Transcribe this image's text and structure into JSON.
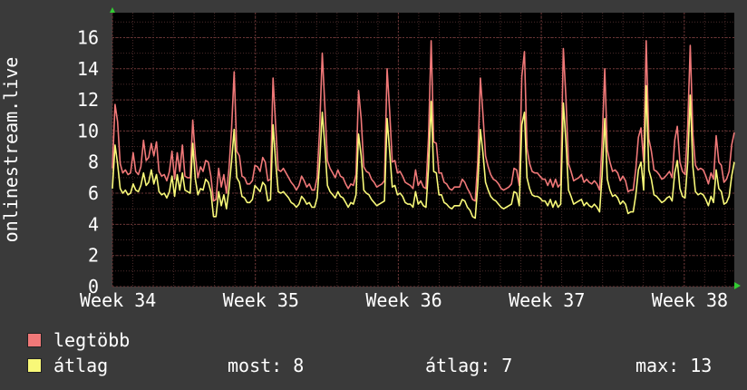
{
  "chart_data": {
    "type": "line",
    "ylabel": "onlinestream.live",
    "xlabel": "",
    "ylim": [
      0,
      17.6
    ],
    "yticks": [
      0,
      2,
      4,
      6,
      8,
      10,
      12,
      14,
      16
    ],
    "xticks": [
      "Week 34",
      "Week 35",
      "Week 36",
      "Week 37",
      "Week 38"
    ],
    "grid": true,
    "series": [
      {
        "name": "legtöbb",
        "color": "#f07878",
        "values": [
          7.6,
          11.7,
          10.6,
          7.9,
          7.3,
          7.5,
          7.2,
          7.3,
          8.6,
          7.4,
          7.2,
          7.7,
          9.4,
          8.1,
          8.3,
          9.2,
          8.4,
          9.3,
          7.4,
          7.1,
          7.2,
          6.8,
          7.4,
          8.7,
          6.9,
          8.6,
          7.4,
          9.1,
          7.1,
          7.0,
          7.0,
          10.7,
          8.4,
          7.0,
          7.7,
          7.4,
          8.1,
          8.0,
          7.1,
          5.5,
          5.6,
          7.6,
          6.4,
          7.2,
          6.0,
          7.6,
          10.2,
          13.8,
          8.7,
          8.4,
          7.1,
          7.0,
          6.6,
          6.6,
          6.8,
          7.8,
          7.7,
          7.4,
          8.3,
          8.0,
          6.8,
          6.9,
          13.4,
          10.3,
          7.5,
          7.4,
          7.6,
          7.3,
          7.0,
          6.7,
          6.5,
          6.2,
          6.5,
          7.1,
          6.8,
          6.4,
          6.6,
          6.2,
          6.2,
          7.0,
          10.3,
          15.0,
          11.5,
          8.1,
          7.6,
          7.3,
          7.0,
          7.5,
          7.1,
          7.0,
          6.6,
          6.3,
          6.6,
          6.5,
          7.2,
          12.6,
          10.8,
          7.7,
          7.4,
          7.3,
          6.9,
          6.7,
          6.4,
          6.5,
          6.6,
          6.8,
          14.0,
          11.3,
          8.0,
          8.1,
          7.3,
          7.4,
          7.1,
          6.7,
          6.6,
          6.5,
          6.3,
          7.5,
          6.5,
          6.8,
          6.4,
          6.3,
          9.6,
          15.8,
          9.3,
          9.2,
          7.3,
          7.3,
          6.7,
          6.6,
          6.3,
          6.2,
          6.4,
          6.4,
          6.4,
          6.9,
          6.7,
          6.3,
          6.0,
          5.6,
          5.5,
          8.0,
          13.4,
          11.1,
          8.4,
          7.7,
          7.2,
          6.9,
          6.8,
          6.6,
          6.3,
          6.2,
          6.3,
          6.4,
          6.6,
          7.6,
          7.5,
          6.5,
          13.5,
          15.1,
          8.9,
          7.9,
          7.4,
          7.3,
          7.3,
          7.1,
          6.9,
          6.9,
          6.5,
          6.9,
          6.4,
          6.9,
          6.4,
          6.6,
          15.3,
          12.2,
          7.9,
          7.4,
          6.8,
          6.9,
          7.0,
          7.2,
          6.7,
          6.9,
          6.7,
          6.6,
          6.8,
          6.6,
          6.2,
          9.3,
          14.0,
          8.8,
          8.0,
          7.4,
          7.5,
          7.3,
          6.8,
          7.1,
          6.8,
          6.1,
          6.2,
          6.2,
          7.6,
          9.6,
          10.2,
          8.0,
          15.8,
          9.5,
          8.7,
          7.5,
          7.4,
          7.2,
          6.9,
          7.0,
          7.2,
          7.4,
          7.0,
          9.4,
          10.3,
          8.0,
          7.4,
          7.2,
          10.3,
          15.5,
          9.8,
          7.8,
          7.5,
          7.6,
          7.5,
          7.1,
          6.6,
          7.3,
          6.9,
          9.7,
          8.0,
          7.8,
          6.7,
          6.9,
          7.4,
          9.1,
          9.9
        ]
      },
      {
        "name": "átlag",
        "color": "#f8f878",
        "values": [
          6.3,
          9.1,
          7.9,
          6.3,
          6.0,
          6.2,
          5.9,
          6.0,
          6.6,
          6.2,
          6.1,
          6.5,
          7.3,
          6.5,
          6.7,
          7.5,
          6.6,
          7.2,
          6.1,
          5.9,
          6.0,
          5.7,
          6.1,
          7.1,
          5.8,
          7.2,
          6.2,
          7.3,
          6.2,
          6.1,
          6.0,
          9.2,
          6.9,
          5.9,
          6.3,
          6.2,
          6.9,
          6.7,
          6.1,
          4.5,
          4.5,
          6.1,
          5.2,
          5.9,
          5.0,
          6.3,
          8.1,
          10.1,
          7.0,
          6.7,
          5.8,
          5.7,
          5.4,
          5.4,
          5.6,
          6.5,
          6.3,
          6.1,
          6.7,
          6.5,
          5.5,
          5.6,
          10.4,
          8.0,
          6.1,
          6.0,
          6.1,
          5.9,
          5.7,
          5.4,
          5.3,
          5.1,
          5.3,
          5.8,
          5.6,
          5.3,
          5.4,
          5.1,
          5.1,
          5.7,
          8.1,
          11.2,
          9.0,
          6.5,
          6.1,
          5.9,
          5.7,
          6.1,
          5.8,
          5.7,
          5.4,
          5.1,
          5.4,
          5.3,
          5.9,
          9.8,
          8.4,
          6.2,
          6.0,
          5.9,
          5.6,
          5.4,
          5.2,
          5.3,
          5.4,
          5.5,
          10.8,
          8.7,
          6.4,
          6.5,
          5.9,
          6.0,
          5.8,
          5.4,
          5.3,
          5.3,
          5.1,
          6.1,
          5.3,
          5.5,
          5.2,
          5.1,
          7.6,
          11.9,
          7.4,
          7.3,
          5.9,
          5.9,
          5.4,
          5.3,
          5.1,
          5.0,
          5.2,
          5.2,
          5.2,
          5.6,
          5.5,
          5.1,
          4.9,
          4.5,
          4.4,
          6.5,
          10.1,
          8.6,
          6.7,
          6.2,
          5.8,
          5.6,
          5.5,
          5.3,
          5.1,
          5.0,
          5.1,
          5.2,
          5.3,
          6.1,
          6.0,
          5.2,
          10.4,
          11.2,
          7.0,
          6.3,
          5.9,
          5.8,
          5.8,
          5.7,
          5.5,
          5.5,
          5.2,
          5.6,
          5.1,
          5.5,
          5.1,
          5.3,
          11.8,
          9.4,
          6.2,
          5.8,
          5.3,
          5.4,
          5.5,
          5.6,
          5.2,
          5.4,
          5.2,
          5.1,
          5.3,
          5.1,
          4.8,
          7.2,
          10.8,
          6.9,
          6.2,
          5.8,
          5.9,
          5.7,
          5.3,
          5.5,
          5.3,
          4.7,
          4.8,
          4.8,
          5.9,
          7.5,
          8.0,
          6.2,
          12.9,
          7.5,
          6.9,
          5.9,
          5.8,
          5.6,
          5.4,
          5.5,
          5.7,
          5.8,
          5.5,
          7.3,
          8.1,
          6.3,
          5.8,
          5.7,
          8.0,
          12.3,
          7.7,
          6.1,
          5.9,
          6.0,
          5.9,
          5.6,
          5.2,
          5.8,
          5.4,
          7.5,
          6.3,
          6.1,
          5.3,
          5.4,
          5.8,
          7.1,
          8.0
        ]
      }
    ]
  },
  "legend": {
    "items": [
      {
        "label": "legtöbb",
        "color": "#f07878"
      },
      {
        "label": "átlag",
        "color": "#f8f878"
      }
    ]
  },
  "stats": {
    "now": "most: 8",
    "avg": "átlag: 7",
    "max": "max: 13"
  }
}
